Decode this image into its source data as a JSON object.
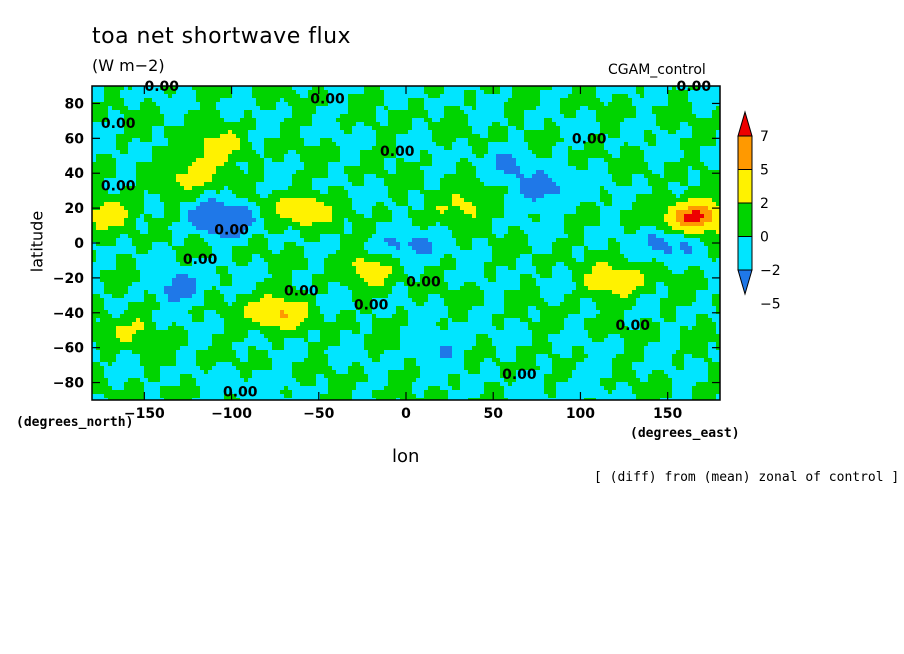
{
  "chart_data": {
    "type": "heatmap",
    "title": "toa net shortwave flux",
    "units": "(W m−2)",
    "run_label": "CGAM_control",
    "xlabel": "lon",
    "ylabel": "latitude",
    "x_units": "(degrees_east)",
    "y_units": "(degrees_north)",
    "note": "[ (diff) from (mean) zonal of control ]",
    "xlim": [
      -180,
      180
    ],
    "ylim": [
      -90,
      90
    ],
    "x_ticks": [
      -150,
      -100,
      -50,
      0,
      50,
      100,
      150
    ],
    "y_ticks": [
      80,
      60,
      40,
      20,
      0,
      -20,
      -40,
      -60,
      -80
    ],
    "x_tick_labels": [
      "−150",
      "−100",
      "−50",
      "0",
      "50",
      "100",
      "150"
    ],
    "y_tick_labels": [
      "80",
      "60",
      "40",
      "20",
      "0",
      "−20",
      "−40",
      "−60",
      "−80"
    ],
    "contour_labels": [
      "0.00",
      "0.00",
      "0.00",
      "0.00",
      "0.00",
      "0.00",
      "0.00",
      "0.00",
      "0.00",
      "0.00",
      "0.00",
      "0.00",
      "0.00",
      "0.00",
      "0.00"
    ],
    "colorbar": {
      "levels": [
        -5,
        -2,
        0,
        2,
        5,
        7
      ],
      "level_labels": [
        "−5",
        "−2",
        "0",
        "2",
        "5",
        "7"
      ],
      "colors": [
        "#1f78e8",
        "#00e5ff",
        "#00d400",
        "#fff200",
        "#ff9900",
        "#ee0000"
      ],
      "under_color": "#1f78e8",
      "over_color": "#ee0000"
    },
    "field_features": [
      {
        "lon": -105,
        "lat": 14,
        "value": -6
      },
      {
        "lon": -170,
        "lat": 18,
        "value": 3
      },
      {
        "lon": -60,
        "lat": 18,
        "value": 4
      },
      {
        "lon": 165,
        "lat": 15,
        "value": 8
      },
      {
        "lon": 120,
        "lat": -22,
        "value": 4
      },
      {
        "lon": -75,
        "lat": -40,
        "value": 5
      },
      {
        "lon": -20,
        "lat": -15,
        "value": 3
      },
      {
        "lon": 30,
        "lat": 20,
        "value": 3
      },
      {
        "lon": -120,
        "lat": 40,
        "value": 3
      },
      {
        "lon": -110,
        "lat": 55,
        "value": 3
      },
      {
        "lon": 5,
        "lat": 0,
        "value": -3
      },
      {
        "lon": 80,
        "lat": 30,
        "value": -3
      },
      {
        "lon": -130,
        "lat": -25,
        "value": -3
      },
      {
        "lon": 150,
        "lat": 0,
        "value": -3
      },
      {
        "lon": -160,
        "lat": -50,
        "value": 2
      },
      {
        "lon": 60,
        "lat": 45,
        "value": -2
      },
      {
        "lon": 20,
        "lat": -60,
        "value": -2
      },
      {
        "lon": -90,
        "lat": -80,
        "value": -1
      },
      {
        "lon": 100,
        "lat": -80,
        "value": -1
      }
    ]
  }
}
